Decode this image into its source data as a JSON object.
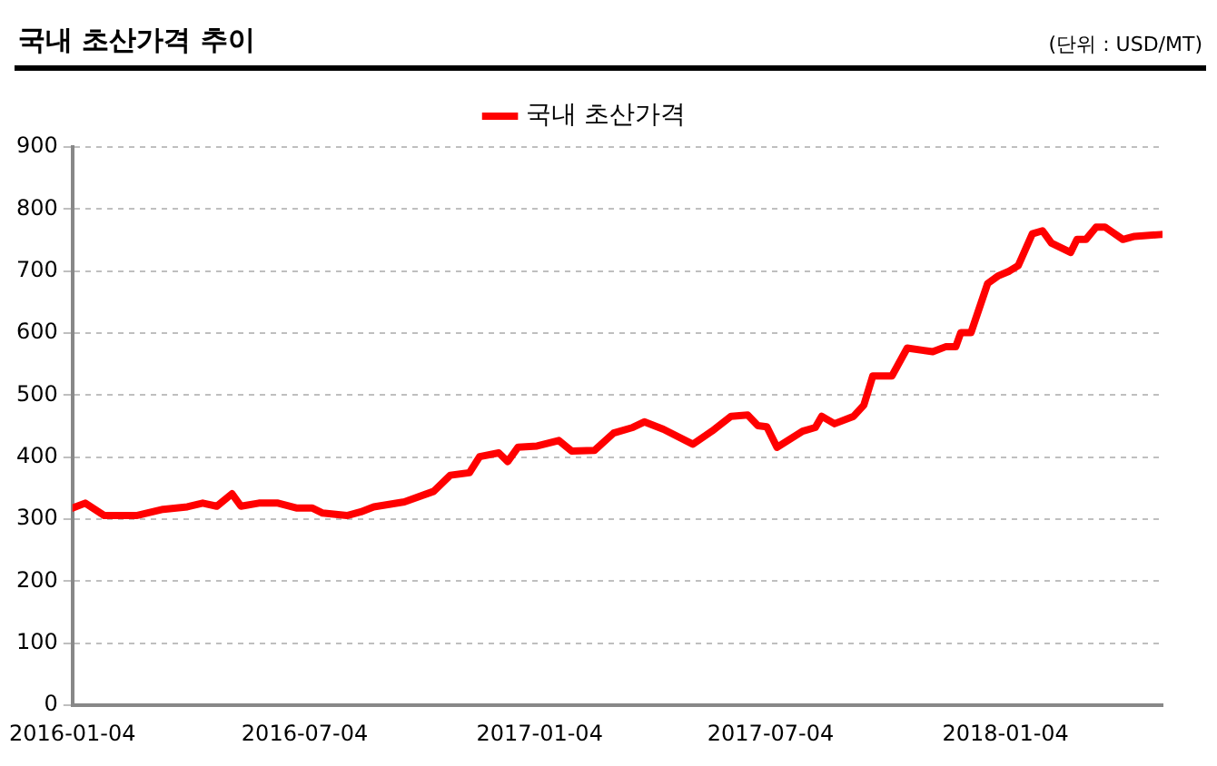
{
  "chart_data": {
    "type": "line",
    "title": "국내 초산가격 추이",
    "annotations": [
      "(단위 : USD/MT)"
    ],
    "x": [
      "2016-01-04",
      "2016-01-14",
      "2016-01-29",
      "2016-02-23",
      "2016-03-15",
      "2016-04-03",
      "2016-04-15",
      "2016-04-26",
      "2016-05-08",
      "2016-05-15",
      "2016-05-29",
      "2016-06-13",
      "2016-06-28",
      "2016-07-10",
      "2016-07-18",
      "2016-08-06",
      "2016-08-17",
      "2016-08-27",
      "2016-09-20",
      "2016-10-13",
      "2016-10-26",
      "2016-11-10",
      "2016-11-18",
      "2016-12-03",
      "2016-12-10",
      "2016-12-18",
      "2017-01-02",
      "2017-01-19",
      "2017-01-29",
      "2017-02-16",
      "2017-03-03",
      "2017-03-18",
      "2017-03-27",
      "2017-04-11",
      "2017-05-04",
      "2017-05-19",
      "2017-06-03",
      "2017-06-16",
      "2017-06-24",
      "2017-07-01",
      "2017-07-09",
      "2017-07-29",
      "2017-08-08",
      "2017-08-13",
      "2017-08-23",
      "2017-09-07",
      "2017-09-15",
      "2017-09-22",
      "2017-10-07",
      "2017-10-19",
      "2017-11-08",
      "2017-11-18",
      "2017-11-26",
      "2017-11-30",
      "2017-12-08",
      "2017-12-21",
      "2017-12-29",
      "2018-01-07",
      "2018-01-14",
      "2018-01-25",
      "2018-02-02",
      "2018-02-09",
      "2018-02-24",
      "2018-03-01",
      "2018-03-08",
      "2018-03-16",
      "2018-03-23",
      "2018-04-06",
      "2018-04-15",
      "2018-05-06"
    ],
    "series": [
      {
        "name": "국내 초산가격",
        "color": "#ff0000",
        "values": [
          318,
          326,
          306,
          306,
          316,
          320,
          326,
          321,
          341,
          321,
          326,
          326,
          318,
          318,
          310,
          306,
          312,
          320,
          328,
          345,
          371,
          375,
          401,
          407,
          393,
          416,
          418,
          427,
          410,
          411,
          439,
          448,
          457,
          445,
          421,
          442,
          466,
          468,
          451,
          449,
          416,
          442,
          448,
          466,
          454,
          466,
          484,
          531,
          531,
          576,
          570,
          578,
          578,
          601,
          601,
          680,
          692,
          700,
          709,
          760,
          765,
          745,
          730,
          751,
          751,
          771,
          771,
          751,
          756,
          759
        ]
      }
    ],
    "xlim": [
      "2016-01-04",
      "2018-05-07"
    ],
    "xticks": [
      "2016-01-04",
      "2016-07-04",
      "2017-01-04",
      "2017-07-04",
      "2018-01-04"
    ],
    "ylim": [
      0,
      900
    ],
    "yticks": [
      0,
      100,
      200,
      300,
      400,
      500,
      600,
      700,
      800,
      900
    ],
    "grid": "y",
    "legend": "top",
    "marker": "none",
    "line_style": "solid"
  }
}
